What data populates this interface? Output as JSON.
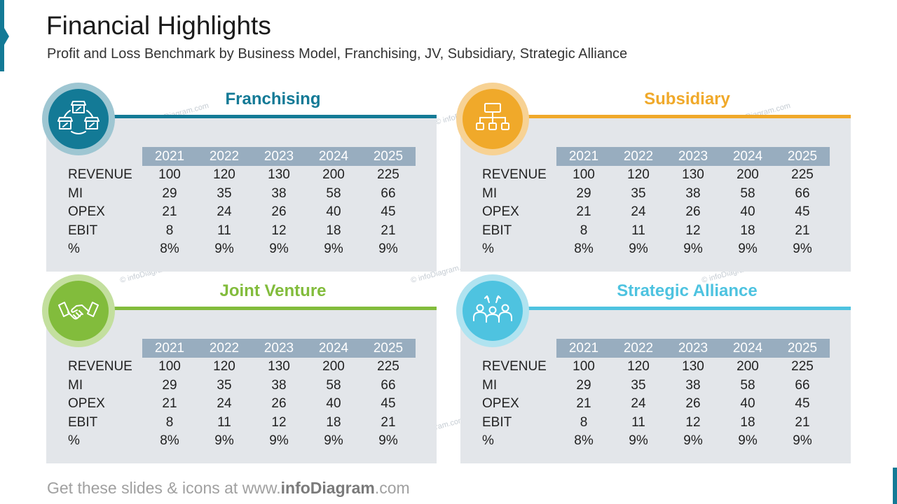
{
  "header": {
    "title": "Financial Highlights",
    "subtitle": "Profit and Loss Benchmark by Business Model, Franchising, JV, Subsidiary, Strategic Alliance"
  },
  "footer": {
    "prefix": "Get these slides & icons at www.",
    "brand": "infoDiagram",
    "suffix": ".com"
  },
  "watermark": "© infoDiagram.com",
  "colors": {
    "franchising": "#137a96",
    "subsidiary": "#f0a92a",
    "joint_venture": "#82bc3c",
    "strategic_alliance": "#4ec3e0",
    "table_header": "#98adbf",
    "panel_bg": "#e3e6ea"
  },
  "panels": [
    {
      "title": "Franchising",
      "icon": "stores-network-icon",
      "years": [
        "2021",
        "2022",
        "2023",
        "2024",
        "2025"
      ],
      "rows": [
        {
          "label": "REVENUE",
          "values": [
            "100",
            "120",
            "130",
            "200",
            "225"
          ]
        },
        {
          "label": "MI",
          "values": [
            "29",
            "35",
            "38",
            "58",
            "66"
          ]
        },
        {
          "label": "OPEX",
          "values": [
            "21",
            "24",
            "26",
            "40",
            "45"
          ]
        },
        {
          "label": "EBIT",
          "values": [
            "8",
            "11",
            "12",
            "18",
            "21"
          ]
        },
        {
          "label": "%",
          "values": [
            "8%",
            "9%",
            "9%",
            "9%",
            "9%"
          ]
        }
      ]
    },
    {
      "title": "Subsidiary",
      "icon": "org-chart-icon",
      "years": [
        "2021",
        "2022",
        "2023",
        "2024",
        "2025"
      ],
      "rows": [
        {
          "label": "REVENUE",
          "values": [
            "100",
            "120",
            "130",
            "200",
            "225"
          ]
        },
        {
          "label": "MI",
          "values": [
            "29",
            "35",
            "38",
            "58",
            "66"
          ]
        },
        {
          "label": "OPEX",
          "values": [
            "21",
            "24",
            "26",
            "40",
            "45"
          ]
        },
        {
          "label": "EBIT",
          "values": [
            "8",
            "11",
            "12",
            "18",
            "21"
          ]
        },
        {
          "label": "%",
          "values": [
            "8%",
            "9%",
            "9%",
            "9%",
            "9%"
          ]
        }
      ]
    },
    {
      "title": "Joint Venture",
      "icon": "handshake-icon",
      "years": [
        "2021",
        "2022",
        "2023",
        "2024",
        "2025"
      ],
      "rows": [
        {
          "label": "REVENUE",
          "values": [
            "100",
            "120",
            "130",
            "200",
            "225"
          ]
        },
        {
          "label": "MI",
          "values": [
            "29",
            "35",
            "38",
            "58",
            "66"
          ]
        },
        {
          "label": "OPEX",
          "values": [
            "21",
            "24",
            "26",
            "40",
            "45"
          ]
        },
        {
          "label": "EBIT",
          "values": [
            "8",
            "11",
            "12",
            "18",
            "21"
          ]
        },
        {
          "label": "%",
          "values": [
            "8%",
            "9%",
            "9%",
            "9%",
            "9%"
          ]
        }
      ]
    },
    {
      "title": "Strategic Alliance",
      "icon": "alliance-people-icon",
      "years": [
        "2021",
        "2022",
        "2023",
        "2024",
        "2025"
      ],
      "rows": [
        {
          "label": "REVENUE",
          "values": [
            "100",
            "120",
            "130",
            "200",
            "225"
          ]
        },
        {
          "label": "MI",
          "values": [
            "29",
            "35",
            "38",
            "58",
            "66"
          ]
        },
        {
          "label": "OPEX",
          "values": [
            "21",
            "24",
            "26",
            "40",
            "45"
          ]
        },
        {
          "label": "EBIT",
          "values": [
            "8",
            "11",
            "12",
            "18",
            "21"
          ]
        },
        {
          "label": "%",
          "values": [
            "8%",
            "9%",
            "9%",
            "9%",
            "9%"
          ]
        }
      ]
    }
  ]
}
